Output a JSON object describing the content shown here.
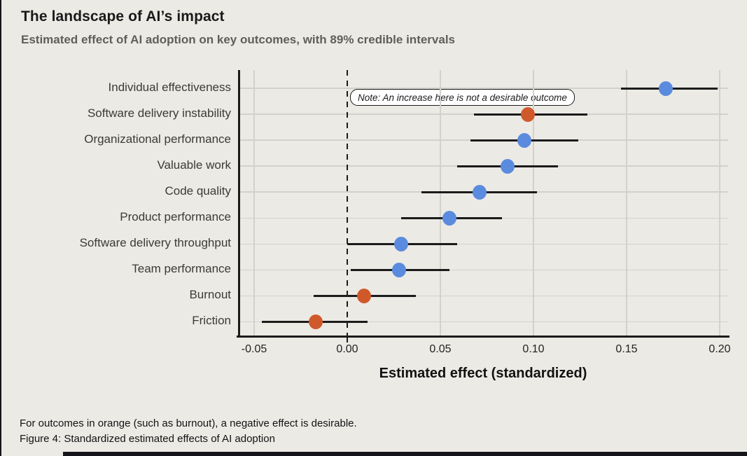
{
  "header": {
    "title": "The landscape of AI’s impact",
    "subtitle": "Estimated effect of AI adoption on key outcomes, with 89% credible intervals"
  },
  "note": {
    "text": "Note: An increase here is not a desirable outcome",
    "attached_to": "Software delivery instability"
  },
  "footer": {
    "line1": "For outcomes in orange (such as burnout), a negative effect is desirable.",
    "line2": "Figure 4: Standardized estimated effects of AI adoption"
  },
  "colors": {
    "background": "#ECEAE5",
    "blue": "#5B8BDE",
    "orange": "#D0592B",
    "grid": "#D3D1CC",
    "axis": "#1B1B1B"
  },
  "chart_data": {
    "type": "scatter",
    "variant": "dot-and-interval (forest plot), 89% credible intervals",
    "title": "The landscape of AI’s impact",
    "subtitle": "Estimated effect of AI adoption on key outcomes, with 89% credible intervals",
    "xlabel": "Estimated effect (standardized)",
    "xlim": [
      -0.058,
      0.205
    ],
    "x_ticks": [
      -0.05,
      0.0,
      0.05,
      0.1,
      0.15,
      0.2
    ],
    "x_tick_labels": [
      "-0.05",
      "0.00",
      "0.05",
      "0.10",
      "0.15",
      "0.20"
    ],
    "zero_reference_line": true,
    "grid": true,
    "points": [
      {
        "label": "Individual effectiveness",
        "estimate": 0.171,
        "ci_low": 0.147,
        "ci_high": 0.199,
        "color": "blue"
      },
      {
        "label": "Software delivery instability",
        "estimate": 0.097,
        "ci_low": 0.068,
        "ci_high": 0.129,
        "color": "orange"
      },
      {
        "label": "Organizational performance",
        "estimate": 0.095,
        "ci_low": 0.066,
        "ci_high": 0.124,
        "color": "blue"
      },
      {
        "label": "Valuable work",
        "estimate": 0.086,
        "ci_low": 0.059,
        "ci_high": 0.113,
        "color": "blue"
      },
      {
        "label": "Code quality",
        "estimate": 0.071,
        "ci_low": 0.04,
        "ci_high": 0.102,
        "color": "blue"
      },
      {
        "label": "Product performance",
        "estimate": 0.055,
        "ci_low": 0.029,
        "ci_high": 0.083,
        "color": "blue"
      },
      {
        "label": "Software delivery throughput",
        "estimate": 0.029,
        "ci_low": 0.0,
        "ci_high": 0.059,
        "color": "blue"
      },
      {
        "label": "Team performance",
        "estimate": 0.028,
        "ci_low": 0.002,
        "ci_high": 0.055,
        "color": "blue"
      },
      {
        "label": "Burnout",
        "estimate": 0.009,
        "ci_low": -0.018,
        "ci_high": 0.037,
        "color": "orange"
      },
      {
        "label": "Friction",
        "estimate": -0.017,
        "ci_low": -0.046,
        "ci_high": 0.011,
        "color": "orange"
      }
    ]
  }
}
